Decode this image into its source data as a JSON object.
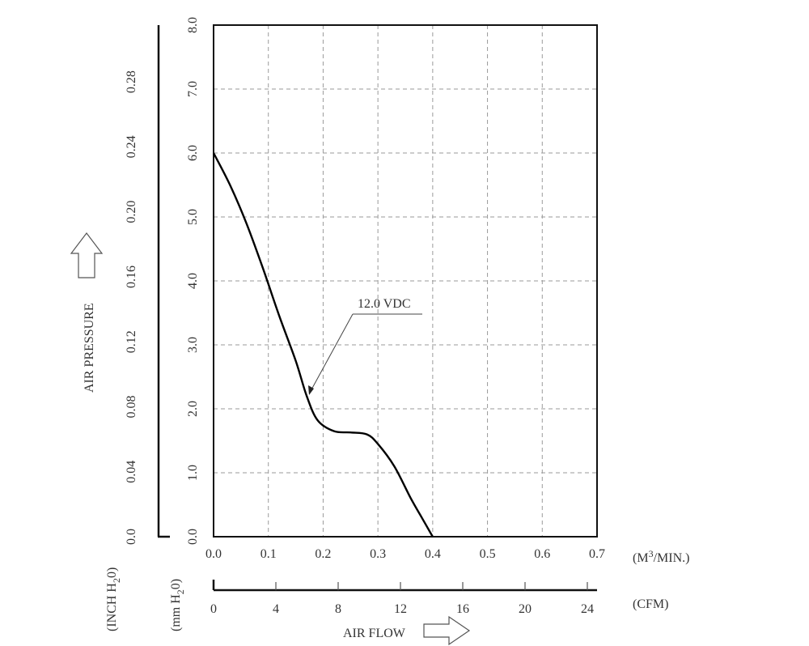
{
  "chart_data": {
    "type": "line",
    "x_m3min_ticks": [
      "0.0",
      "0.1",
      "0.2",
      "0.3",
      "0.4",
      "0.5",
      "0.6",
      "0.7"
    ],
    "x_cfm_ticks": [
      "0",
      "4",
      "8",
      "12",
      "16",
      "20",
      "24"
    ],
    "y_mmh2o_ticks": [
      "0.0",
      "1.0",
      "2.0",
      "3.0",
      "4.0",
      "5.0",
      "6.0",
      "7.0",
      "8.0"
    ],
    "y_inchh2o_ticks": [
      "0.0",
      "0.04",
      "0.08",
      "0.12",
      "0.16",
      "0.20",
      "0.24",
      "0.28"
    ],
    "x_unit_m3": "(M",
    "x_unit_m3_sup": "3",
    "x_unit_m3_tail": "/MIN.)",
    "x_unit_cfm": "(CFM)",
    "y_unit_mm_pre": "(mm H",
    "y_unit_mm_sub": "2",
    "y_unit_mm_post": "0)",
    "y_unit_inch_pre": "(INCH H",
    "y_unit_inch_sub": "2",
    "y_unit_inch_post": "0)",
    "xlabel": "AIR FLOW",
    "ylabel": "AIR PRESSURE",
    "xlim": [
      0,
      0.7
    ],
    "ylim": [
      0,
      8
    ],
    "grid": true,
    "series": [
      {
        "name": "12.0 VDC",
        "color": "#000000",
        "x": [
          0,
          0.03,
          0.06,
          0.09,
          0.12,
          0.15,
          0.17,
          0.19,
          0.22,
          0.25,
          0.28,
          0.3,
          0.33,
          0.36,
          0.38,
          0.4
        ],
        "y": [
          6.0,
          5.5,
          4.9,
          4.2,
          3.45,
          2.75,
          2.2,
          1.82,
          1.65,
          1.63,
          1.6,
          1.45,
          1.1,
          0.6,
          0.3,
          0.0
        ]
      }
    ],
    "annotation": {
      "text": "12.0 VDC",
      "x": 0.175,
      "y": 2.25
    }
  }
}
